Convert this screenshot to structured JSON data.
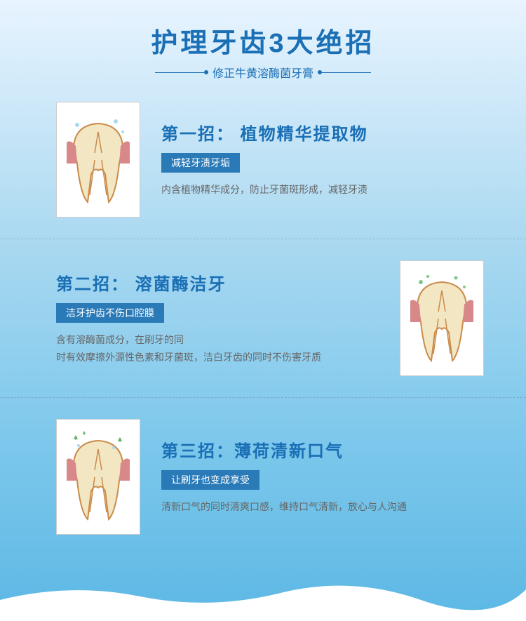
{
  "colors": {
    "primary": "#1a6fb5",
    "badge_bg": "#2a7ab8",
    "tooth_enamel": "#f3e6c3",
    "tooth_root": "#e8d8a8",
    "gum": "#d88888",
    "pulp_line": "#c98b4a",
    "desc_text": "#666666"
  },
  "header": {
    "title": "护理牙齿3大绝招",
    "subtitle": "修正牛黄溶酶菌牙膏",
    "title_fontsize": 38,
    "subtitle_fontsize": 16
  },
  "sections": [
    {
      "title": "第一招： 植物精华提取物",
      "badge": "减轻牙渍牙垢",
      "desc": "内含植物精华成分，防止牙菌斑形成，减轻牙渍",
      "image_side": "left"
    },
    {
      "title": "第二招： 溶菌酶洁牙",
      "badge": "洁牙护齿不伤口腔膜",
      "desc": "含有溶酶菌成分，在刷牙的同\n时有效摩擦外源性色素和牙菌斑，洁白牙齿的同时不伤害牙质",
      "image_side": "right"
    },
    {
      "title": "第三招：薄荷清新口气",
      "badge": "让刷牙也变成享受",
      "desc": "清新口气的同时清爽口感，维持口气清新，放心与人沟通",
      "image_side": "left"
    }
  ]
}
